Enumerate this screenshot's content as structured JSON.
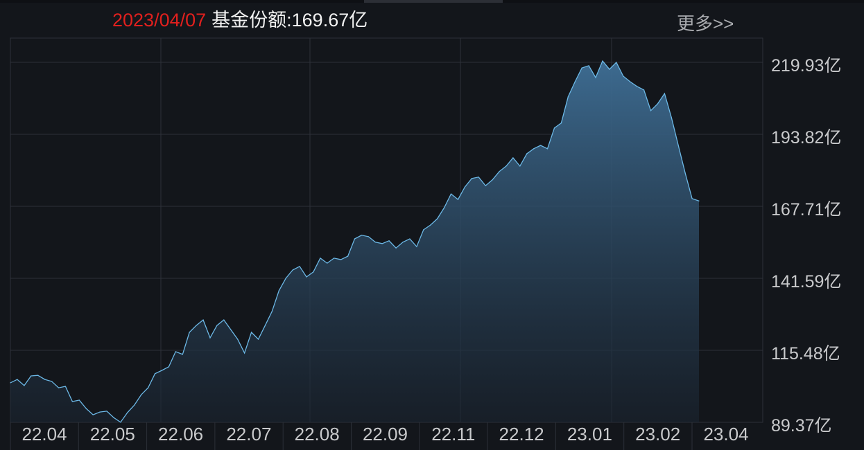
{
  "header": {
    "date": "2023/04/07",
    "label": "基金份额:169.67亿",
    "more": "更多>>"
  },
  "colors": {
    "line": "#6cb8e6",
    "date": "#e0201e",
    "background": "#13161b",
    "grid": "#2c3038"
  },
  "chart_data": {
    "type": "area",
    "title": "",
    "xlabel": "",
    "ylabel": "",
    "ylim": [
      89.37,
      219.93
    ],
    "y_ticks": [
      "219.93亿",
      "193.82亿",
      "167.71亿",
      "141.59亿",
      "115.48亿",
      "89.37亿"
    ],
    "x_ticks": [
      "22.04",
      "22.05",
      "22.06",
      "22.07",
      "22.08",
      "22.09",
      "22.11",
      "22.12",
      "23.01",
      "23.02",
      "23.04"
    ],
    "grid": true,
    "series": [
      {
        "values": [
          103.7,
          104.9,
          102.7,
          106.2,
          106.4,
          104.9,
          104.2,
          101.9,
          102.4,
          96.9,
          97.4,
          94.4,
          92.1,
          93.1,
          93.4,
          91.1,
          89.4,
          92.9,
          95.6,
          99.4,
          101.9,
          107.0,
          108.2,
          109.5,
          115.0,
          114.0,
          122.0,
          124.5,
          126.5,
          120.0,
          124.5,
          126.5,
          123.0,
          119.5,
          114.5,
          122.0,
          119.5,
          124.5,
          129.6,
          137.1,
          141.6,
          144.6,
          145.9,
          142.1,
          143.9,
          148.9,
          147.1,
          148.9,
          148.4,
          149.6,
          155.9,
          157.2,
          156.7,
          154.7,
          154.2,
          155.2,
          152.6,
          154.7,
          155.9,
          153.1,
          159.2,
          160.9,
          163.2,
          167.2,
          172.2,
          170.2,
          174.7,
          177.8,
          178.3,
          175.2,
          177.3,
          180.3,
          182.3,
          185.3,
          182.3,
          186.8,
          188.6,
          189.8,
          188.6,
          196.1,
          197.9,
          207.4,
          212.9,
          217.9,
          218.7,
          214.4,
          220.4,
          217.4,
          219.9,
          214.9,
          212.9,
          211.2,
          209.9,
          202.4,
          204.9,
          208.6,
          199.9,
          189.8,
          179.8,
          170.5,
          169.67
        ]
      }
    ]
  }
}
